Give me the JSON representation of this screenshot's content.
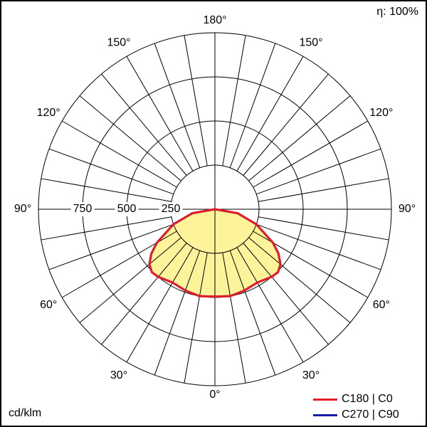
{
  "chart_data": {
    "type": "polar",
    "efficiency_label": "η: 100%",
    "unit_label": "cd/klm",
    "radial_ticks": [
      250,
      500,
      750
    ],
    "radial_tick_labels": [
      "250",
      "500",
      "750"
    ],
    "radial_max": 1000,
    "angle_labels": {
      "bottom": "0°",
      "top": "180°",
      "left_90": "90°",
      "right_90": "90°",
      "left_30": "30°",
      "right_30": "30°",
      "left_60": "60°",
      "right_60": "60°",
      "left_120": "120°",
      "right_120": "120°",
      "left_150": "150°",
      "right_150": "150°"
    },
    "series": [
      {
        "name": "C180 | C0",
        "color": "#e31e24",
        "angles_deg": [
          0,
          10,
          20,
          30,
          40,
          45,
          50,
          55,
          60,
          70,
          80,
          90
        ],
        "values": [
          495,
          500,
          490,
          480,
          500,
          505,
          485,
          440,
          380,
          250,
          130,
          0
        ]
      },
      {
        "name": "C270 | C90",
        "color": "#1a1aa8",
        "angles_deg": [
          0,
          10,
          20,
          30,
          40,
          45,
          50,
          55,
          60,
          70,
          80,
          90
        ],
        "values": [
          495,
          500,
          490,
          480,
          500,
          505,
          485,
          440,
          380,
          250,
          130,
          0
        ]
      }
    ],
    "fill_color": "#fcf39b",
    "grid": true
  },
  "legend": [
    {
      "label": "C180 | C0",
      "color": "#e31e24"
    },
    {
      "label": "C270 | C90",
      "color": "#1a1aa8"
    }
  ]
}
